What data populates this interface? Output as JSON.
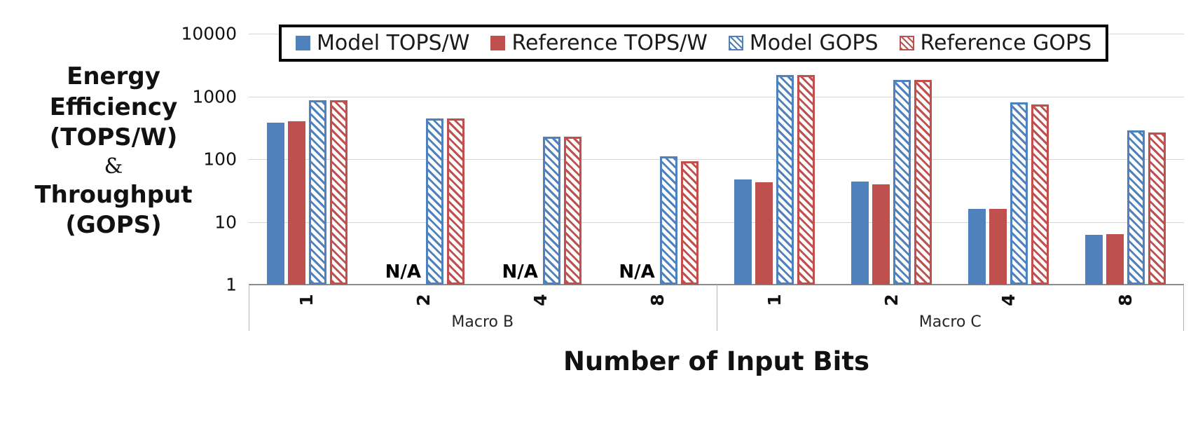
{
  "chart_data": {
    "type": "bar",
    "scale": "log",
    "title": "",
    "xlabel": "Number of Input Bits",
    "ylabel": "Energy Efficiency (TOPS/W) & Throughput (GOPS)",
    "ylabel_lines": [
      "Energy",
      "Efficiency",
      "(TOPS/W)",
      "&",
      "Throughput",
      "(GOPS)"
    ],
    "ylim": [
      1,
      10000
    ],
    "yticks": [
      10000,
      1000,
      100,
      10,
      1
    ],
    "grid": true,
    "legend_position": "top",
    "na_label": "N/A",
    "groups": [
      {
        "label": "Macro B",
        "categories": [
          "1",
          "2",
          "4",
          "8"
        ]
      },
      {
        "label": "Macro C",
        "categories": [
          "1",
          "2",
          "4",
          "8"
        ]
      }
    ],
    "series": [
      {
        "name": "Model TOPS/W",
        "color": "#4F81BD",
        "pattern": "solid",
        "values": [
          [
            380,
            null,
            null,
            null
          ],
          [
            47,
            44,
            16,
            6.2
          ]
        ]
      },
      {
        "name": "Reference TOPS/W",
        "color": "#C0504D",
        "pattern": "solid",
        "values": [
          [
            400,
            null,
            null,
            null
          ],
          [
            43,
            40,
            16,
            6.4
          ]
        ]
      },
      {
        "name": "Model GOPS",
        "color": "#4F81BD",
        "pattern": "hatch",
        "values": [
          [
            870,
            450,
            225,
            110
          ],
          [
            2200,
            1850,
            800,
            290
          ]
        ]
      },
      {
        "name": "Reference GOPS",
        "color": "#C0504D",
        "pattern": "hatch",
        "values": [
          [
            860,
            450,
            225,
            93
          ],
          [
            2200,
            1850,
            750,
            265
          ]
        ]
      }
    ],
    "colors": {
      "model_blue": "#4F81BD",
      "reference_red": "#C0504D"
    }
  }
}
